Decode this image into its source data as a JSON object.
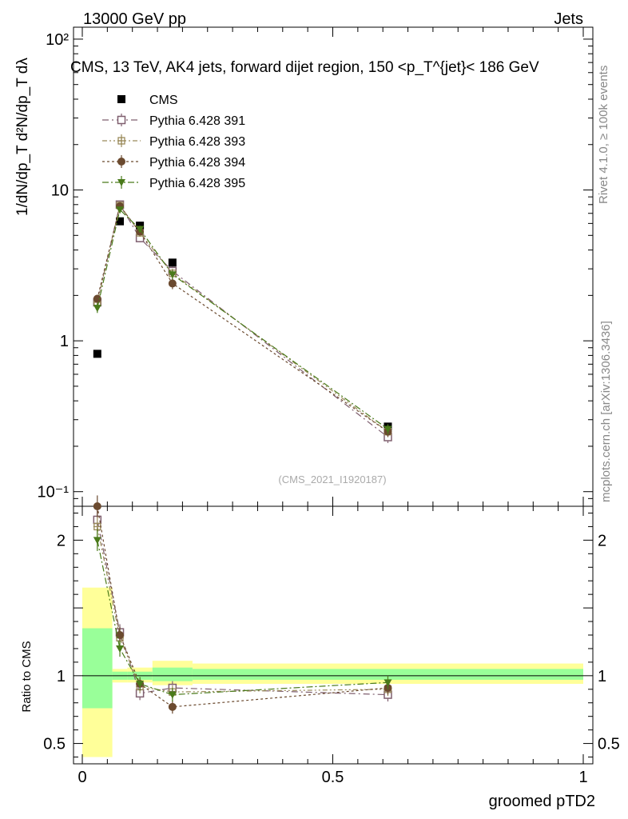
{
  "header": {
    "energy_label": "13000 GeV pp",
    "category_label": "Jets",
    "rivet_label": "Rivet 4.1.0, ≥ 100k events",
    "site_label": "mcplots.cern.ch [arXiv:1306.3436]",
    "analysis_label": "(CMS_2021_I1920187)"
  },
  "chart_data": [
    {
      "id": "main",
      "type": "scatter",
      "title": "CMS, 13 TeV, AK4 jets, forward dijet region, 150 <p_T^{jet}< 186 GeV",
      "xlabel": "groomed pTD2",
      "ylabel": "1/dN/dp_T  d²N/dp_T dλ",
      "yscale": "log",
      "xlim": [
        0,
        1
      ],
      "ylim": [
        0.08,
        120
      ],
      "y_ticks": [
        {
          "value": 0.1,
          "label": "10⁻¹"
        },
        {
          "value": 1,
          "label": "1"
        },
        {
          "value": 10,
          "label": "10"
        },
        {
          "value": 100,
          "label": "10²"
        }
      ],
      "series": [
        {
          "name": "CMS",
          "color": "#000000",
          "marker": "square-filled",
          "line": false,
          "x": [
            0.03,
            0.075,
            0.115,
            0.18,
            0.61
          ],
          "y": [
            0.82,
            6.2,
            5.8,
            3.3,
            0.27
          ]
        },
        {
          "name": "Pythia 6.428 391",
          "color": "#7f5f6f",
          "marker": "square-open",
          "line": true,
          "x": [
            0.03,
            0.075,
            0.115,
            0.18,
            0.61
          ],
          "y": [
            1.8,
            8.0,
            4.8,
            2.9,
            0.23
          ],
          "err": [
            0.12,
            0.4,
            0.3,
            0.2,
            0.02
          ]
        },
        {
          "name": "Pythia 6.428 393",
          "color": "#9a8a5a",
          "marker": "cross-square",
          "line": true,
          "x": [
            0.03,
            0.075,
            0.115,
            0.18,
            0.61
          ],
          "y": [
            1.8,
            7.9,
            5.2,
            2.8,
            0.25
          ],
          "err": [
            0.12,
            0.4,
            0.3,
            0.2,
            0.02
          ]
        },
        {
          "name": "Pythia 6.428 394",
          "color": "#6b4a2f",
          "marker": "circle-filled",
          "line": true,
          "x": [
            0.03,
            0.075,
            0.115,
            0.18,
            0.61
          ],
          "y": [
            1.9,
            7.8,
            5.3,
            2.4,
            0.25
          ],
          "err": [
            0.12,
            0.4,
            0.3,
            0.2,
            0.02
          ]
        },
        {
          "name": "Pythia 6.428 395",
          "color": "#4a7a1a",
          "marker": "triangle-down-filled",
          "line": true,
          "x": [
            0.03,
            0.075,
            0.115,
            0.18,
            0.61
          ],
          "y": [
            1.65,
            7.4,
            5.5,
            2.75,
            0.26
          ],
          "err": [
            0.12,
            0.4,
            0.3,
            0.2,
            0.02
          ]
        }
      ]
    },
    {
      "id": "ratio",
      "type": "scatter",
      "xlabel": "groomed pTD2",
      "ylabel": "Ratio to CMS",
      "xlim": [
        0,
        1
      ],
      "ylim": [
        0.35,
        2.25
      ],
      "x_ticks": [
        {
          "value": 0,
          "label": "0"
        },
        {
          "value": 0.5,
          "label": "0.5"
        },
        {
          "value": 1,
          "label": "1"
        }
      ],
      "y_ticks": [
        {
          "value": 0.5,
          "label": "0.5"
        },
        {
          "value": 1,
          "label": "1"
        },
        {
          "value": 2,
          "label": "2"
        }
      ],
      "bands": [
        {
          "x0": 0.0,
          "x1": 0.06,
          "yellow": [
            0.4,
            1.65
          ],
          "green": [
            0.76,
            1.35
          ]
        },
        {
          "x0": 0.06,
          "x1": 0.09,
          "yellow": [
            0.95,
            1.05
          ],
          "green": [
            0.97,
            1.03
          ]
        },
        {
          "x0": 0.09,
          "x1": 0.14,
          "yellow": [
            0.95,
            1.06
          ],
          "green": [
            0.97,
            1.03
          ]
        },
        {
          "x0": 0.14,
          "x1": 0.22,
          "yellow": [
            0.93,
            1.11
          ],
          "green": [
            0.96,
            1.06
          ]
        },
        {
          "x0": 0.22,
          "x1": 1.0,
          "yellow": [
            0.94,
            1.09
          ],
          "green": [
            0.97,
            1.05
          ]
        }
      ],
      "series": [
        {
          "name": "Pythia 6.428 391",
          "color": "#7f5f6f",
          "marker": "square-open",
          "x": [
            0.03,
            0.075,
            0.115,
            0.18,
            0.61
          ],
          "y": [
            2.15,
            1.32,
            0.87,
            0.91,
            0.86
          ],
          "err": [
            0.08,
            0.06,
            0.05,
            0.05,
            0.05
          ]
        },
        {
          "name": "Pythia 6.428 393",
          "color": "#9a8a5a",
          "marker": "cross-square",
          "x": [
            0.03,
            0.075,
            0.115,
            0.18,
            0.61
          ],
          "y": [
            2.1,
            1.28,
            0.92,
            0.88,
            0.9
          ],
          "err": [
            0.08,
            0.06,
            0.05,
            0.05,
            0.05
          ]
        },
        {
          "name": "Pythia 6.428 394",
          "color": "#6b4a2f",
          "marker": "circle-filled",
          "x": [
            0.03,
            0.075,
            0.115,
            0.18,
            0.61
          ],
          "y": [
            2.25,
            1.3,
            0.94,
            0.77,
            0.91
          ],
          "err": [
            0.08,
            0.06,
            0.05,
            0.05,
            0.05
          ]
        },
        {
          "name": "Pythia 6.428 395",
          "color": "#4a7a1a",
          "marker": "triangle-down-filled",
          "x": [
            0.03,
            0.075,
            0.115,
            0.18,
            0.61
          ],
          "y": [
            2.0,
            1.2,
            0.94,
            0.86,
            0.95
          ],
          "err": [
            0.08,
            0.06,
            0.05,
            0.05,
            0.05
          ]
        }
      ]
    }
  ]
}
